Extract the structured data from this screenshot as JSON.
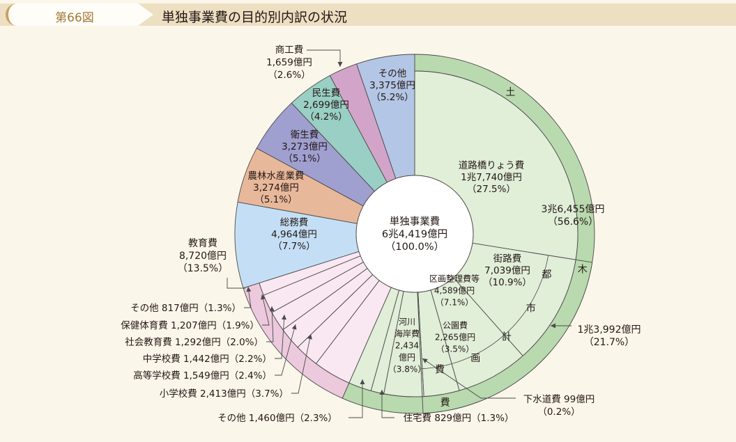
{
  "header": {
    "figure_number": "第66図",
    "title": "単独事業費の目的別内訳の状況"
  },
  "chart_data": {
    "type": "pie",
    "variant": "donut-with-outer-ring",
    "title": "単独事業費の目的別内訳の状況",
    "center": {
      "lines": [
        "単独事業費",
        "6兆4,419億円",
        "（100.0%）"
      ]
    },
    "total_oku_yen": 64419,
    "start": "12 o'clock, clockwise",
    "colors": {
      "doboku_inner": "#e1eed8",
      "doboku_ring": "#b9d9ae",
      "kyoiku_inner": "#f9e8f1",
      "kyoiku_ring": "#ecc9dd",
      "somu": "#c4dff5",
      "norin": "#e8b89b",
      "eisei": "#9f9fd0",
      "minsei": "#99cfc4",
      "shoko": "#d3a4c9",
      "sonota": "#b3c6e5",
      "line": "#4a4a4a"
    },
    "groups": [
      {
        "name": "土木費",
        "ring_text": [
          "土",
          "木",
          "費"
        ],
        "value": 36455,
        "pct": 56.6,
        "labels": [
          "3兆6,455億円",
          "（56.6%）"
        ],
        "color": "doboku_ring"
      },
      {
        "name": "都市計画費",
        "ring_text": [
          "都",
          "市",
          "計",
          "画",
          "費"
        ],
        "value": 13992,
        "pct": 21.7,
        "labels": [
          "1兆3,992億円",
          "（21.7%）"
        ],
        "color": "doboku_ring"
      },
      {
        "name": "教育費",
        "value": 8720,
        "pct": 13.5,
        "labels": [
          "教育費",
          "8,720億円",
          "（13.5%）"
        ],
        "color": "kyoiku_ring"
      }
    ],
    "slices": [
      {
        "group": "土木費",
        "name": "道路橋りょう費",
        "value": 17740,
        "pct": 27.5,
        "color": "doboku_inner",
        "labels": [
          "道路橋りょう費",
          "1兆7,740億円",
          "（27.5%）"
        ]
      },
      {
        "group": "都市計画費",
        "name": "街路費",
        "value": 7039,
        "pct": 10.9,
        "color": "doboku_inner",
        "labels": [
          "街路費",
          "7,039億円",
          "（10.9%）"
        ]
      },
      {
        "group": "都市計画費",
        "name": "区画整理費等",
        "value": 4589,
        "pct": 7.1,
        "color": "doboku_inner",
        "labels": [
          "区画整理費等",
          "4,589億円",
          "（7.1%）"
        ]
      },
      {
        "group": "都市計画費",
        "name": "公園費",
        "value": 2265,
        "pct": 3.5,
        "color": "doboku_inner",
        "labels": [
          "公園費",
          "2,265億円",
          "（3.5%）"
        ]
      },
      {
        "group": "都市計画費",
        "name": "下水道費",
        "value": 99,
        "pct": 0.2,
        "color": "doboku_inner",
        "labels": [
          "下水道費  99億円",
          "（0.2%）"
        ]
      },
      {
        "group": "土木費",
        "name": "河川海岸費",
        "value": 2434,
        "pct": 3.8,
        "color": "doboku_inner",
        "labels": [
          "河川",
          "海岸費",
          "2,434",
          "億円",
          "（3.8%）"
        ]
      },
      {
        "group": "土木費",
        "name": "住宅費",
        "value": 829,
        "pct": 1.3,
        "color": "doboku_inner",
        "labels": [
          "住宅費  829億円（1.3%）"
        ]
      },
      {
        "group": "土木費",
        "name": "その他（土木）",
        "value": 1460,
        "pct": 2.3,
        "color": "doboku_inner",
        "labels": [
          "その他  1,460億円（2.3%）"
        ]
      },
      {
        "group": "教育費",
        "name": "小学校費",
        "value": 2413,
        "pct": 3.7,
        "color": "kyoiku_inner",
        "labels": [
          "小学校費  2,413億円（3.7%）"
        ]
      },
      {
        "group": "教育費",
        "name": "高等学校費",
        "value": 1549,
        "pct": 2.4,
        "color": "kyoiku_inner",
        "labels": [
          "高等学校費  1,549億円（2.4%）"
        ]
      },
      {
        "group": "教育費",
        "name": "中学校費",
        "value": 1442,
        "pct": 2.2,
        "color": "kyoiku_inner",
        "labels": [
          "中学校費  1,442億円（2.2%）"
        ]
      },
      {
        "group": "教育費",
        "name": "社会教育費",
        "value": 1292,
        "pct": 2.0,
        "color": "kyoiku_inner",
        "labels": [
          "社会教育費  1,292億円（2.0%）"
        ]
      },
      {
        "group": "教育費",
        "name": "保健体育費",
        "value": 1207,
        "pct": 1.9,
        "color": "kyoiku_inner",
        "labels": [
          "保健体育費  1,207億円（1.9%）"
        ]
      },
      {
        "group": "教育費",
        "name": "その他（教育）",
        "value": 817,
        "pct": 1.3,
        "color": "kyoiku_inner",
        "labels": [
          "その他  817億円（1.3%）"
        ]
      },
      {
        "group": null,
        "name": "総務費",
        "value": 4964,
        "pct": 7.7,
        "color": "somu",
        "labels": [
          "総務費",
          "4,964億円",
          "（7.7%）"
        ]
      },
      {
        "group": null,
        "name": "農林水産業費",
        "value": 3274,
        "pct": 5.1,
        "color": "norin",
        "labels": [
          "農林水産業費",
          "3,274億円",
          "（5.1%）"
        ]
      },
      {
        "group": null,
        "name": "衛生費",
        "value": 3273,
        "pct": 5.1,
        "color": "eisei",
        "labels": [
          "衛生費",
          "3,273億円",
          "（5.1%）"
        ]
      },
      {
        "group": null,
        "name": "民生費",
        "value": 2699,
        "pct": 4.2,
        "color": "minsei",
        "labels": [
          "民生費",
          "2,699億円",
          "（4.2%）"
        ]
      },
      {
        "group": null,
        "name": "商工費",
        "value": 1659,
        "pct": 2.6,
        "color": "shoko",
        "labels": [
          "商工費",
          "1,659億円",
          "（2.6%）"
        ]
      },
      {
        "group": null,
        "name": "その他",
        "value": 3375,
        "pct": 5.2,
        "color": "sonota",
        "labels": [
          "その他",
          "3,375億円",
          "（5.2%）"
        ]
      }
    ]
  }
}
